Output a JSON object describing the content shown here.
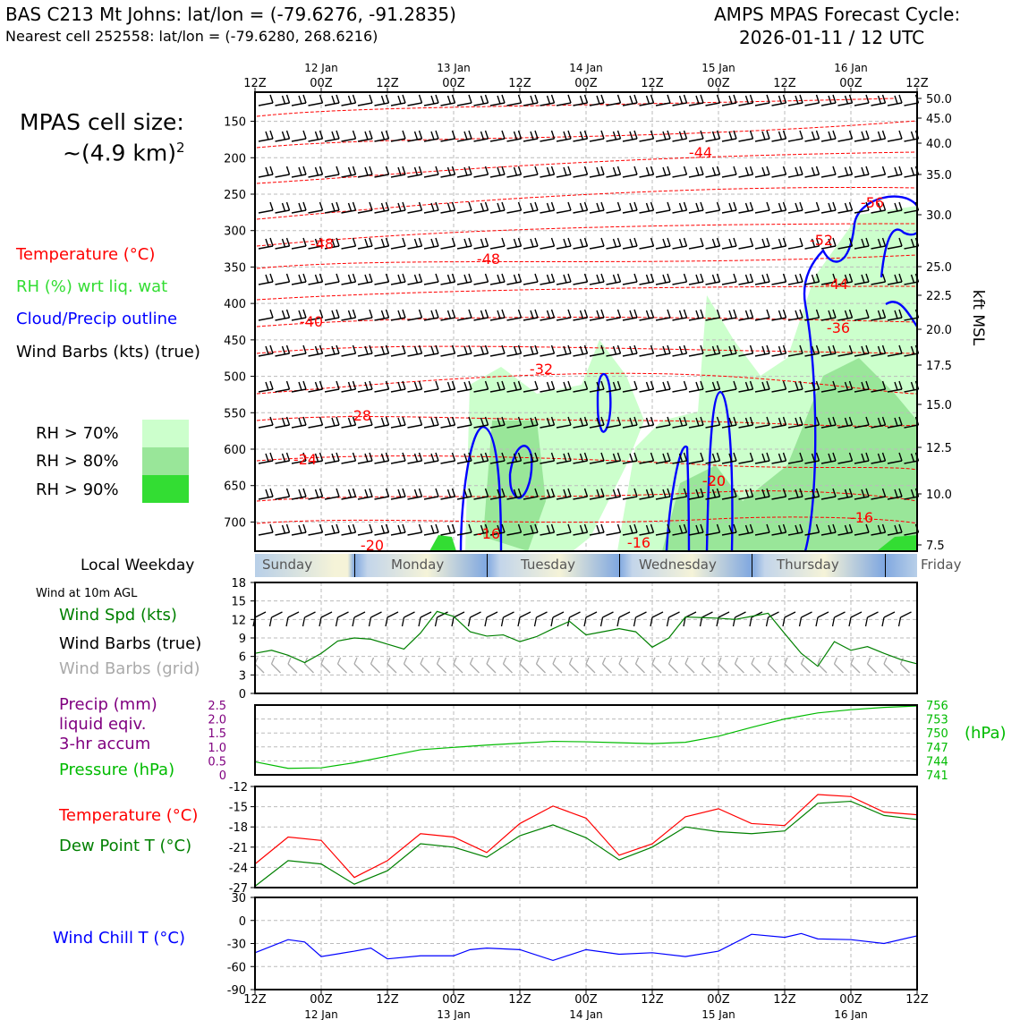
{
  "header": {
    "station_line": "BAS C213 Mt Johns: lat/lon = (-79.6276, -91.2835)",
    "cell_line": "Nearest cell 252558: lat/lon = (-79.6280, 268.6216)",
    "cycle_line1": "AMPS MPAS Forecast Cycle:",
    "cycle_line2": "2026-01-11 / 12 UTC"
  },
  "sidebar": {
    "cell_size_label": "MPAS cell size:",
    "cell_size_value": "~(4.9 km)",
    "cell_size_exp": "2",
    "legend_temperature": "Temperature (°C)",
    "legend_rh": "RH (%) wrt liq. wat",
    "legend_cloud": "Cloud/Precip outline",
    "legend_wind": "Wind Barbs (kts) (true)",
    "rh_levels": [
      "RH > 70%",
      "RH > 80%",
      "RH > 90%"
    ],
    "rh_colors": [
      "#ccffcc",
      "#99e699",
      "#33dd33"
    ]
  },
  "time_axis": {
    "top_ticks": [
      "12Z",
      "00Z",
      "12Z",
      "00Z",
      "12Z",
      "00Z",
      "12Z",
      "00Z",
      "12Z",
      "00Z",
      "12Z"
    ],
    "dates": [
      "12 Jan",
      "13 Jan",
      "14 Jan",
      "15 Jan",
      "16 Jan"
    ]
  },
  "weekday": {
    "title": "Local Weekday",
    "days": [
      "Sunday",
      "Monday",
      "Tuesday",
      "Wednesday",
      "Thursday",
      "Friday"
    ]
  },
  "lower_labels": {
    "wind_title": "Wind at 10m AGL",
    "wind_spd": "Wind Spd (kts)",
    "wind_barbs_true": "Wind Barbs (true)",
    "wind_barbs_grid": "Wind Barbs (grid)",
    "precip_line1": "Precip (mm)",
    "precip_line2": "liquid eqiv.",
    "precip_line3": "3-hr accum",
    "pressure": "Pressure (hPa)",
    "pressure_unit": "(hPa)",
    "temperature": "Temperature (°C)",
    "dewpoint": "Dew Point T (°C)",
    "windchill": "Wind Chill T (°C)"
  },
  "colors": {
    "temperature": "#ff0000",
    "rh": "#33dd33",
    "cloud": "#0000ff",
    "wind_spd": "#008000",
    "wind_grid": "#aaaaaa",
    "precip": "#800080",
    "pressure": "#00bb00",
    "windchill": "#0000ff"
  },
  "chart_data": [
    {
      "type": "line",
      "name": "time-height cross section",
      "x_range": [
        "2026-01-11 12Z",
        "2026-01-16 12Z"
      ],
      "pressure_ticks": [
        150,
        200,
        250,
        300,
        350,
        400,
        450,
        500,
        550,
        600,
        650,
        700
      ],
      "kft_ticks": [
        "50.0",
        "45.0",
        "40.0",
        "35.0",
        "30.0",
        "25.0",
        "22.5",
        "20.0",
        "17.5",
        "15.0",
        "12.5",
        "10.0",
        "7.5"
      ],
      "kft_label": "kft MSL",
      "temperature_contour_labels": [
        "-44",
        "-48",
        "-48",
        "-52",
        "-56",
        "-44",
        "-40",
        "-36",
        "-32",
        "-28",
        "-24",
        "-20",
        "-20",
        "-16",
        "-16",
        "-16",
        "-20"
      ]
    },
    {
      "type": "line",
      "name": "wind speed 10m",
      "xlabel": "",
      "ylabel": "",
      "ylim": [
        0,
        18
      ],
      "yticks": [
        "0",
        "3",
        "6",
        "9",
        "12",
        "15",
        "18"
      ],
      "x_hours": [
        0,
        3,
        6,
        9,
        12,
        15,
        18,
        21,
        24,
        27,
        30,
        33,
        36,
        39,
        42,
        45,
        48,
        51,
        54,
        57,
        60,
        63,
        66,
        69,
        72,
        75,
        78,
        81,
        84,
        87,
        90,
        93,
        96,
        99,
        102,
        105,
        108,
        111,
        114,
        117,
        120
      ],
      "series": [
        {
          "name": "Wind Spd (kts)",
          "values": [
            6.5,
            7.0,
            6.2,
            5.0,
            6.5,
            8.5,
            9.0,
            8.8,
            8.0,
            7.2,
            9.8,
            13.3,
            12.5,
            10.0,
            9.3,
            9.5,
            8.4,
            9.2,
            10.5,
            11.7,
            9.5,
            10.0,
            10.5,
            10.0,
            7.5,
            9.0,
            12.4,
            12.3,
            12.2,
            12.0,
            12.5,
            13.0,
            9.7,
            6.5,
            4.4,
            8.4,
            7.0,
            7.6,
            6.5,
            5.5,
            4.8
          ]
        }
      ]
    },
    {
      "type": "line",
      "name": "pressure and precip",
      "ylim_precip": [
        0,
        2.5
      ],
      "precip_ticks": [
        "0",
        "0.5",
        "1.0",
        "1.5",
        "2.0",
        "2.5"
      ],
      "ylim_pressure": [
        741,
        756
      ],
      "pressure_ticks": [
        "741",
        "744",
        "747",
        "750",
        "753",
        "756"
      ],
      "x_hours": [
        0,
        6,
        12,
        18,
        24,
        30,
        36,
        42,
        48,
        54,
        60,
        66,
        72,
        78,
        84,
        90,
        96,
        102,
        108,
        114,
        120
      ],
      "series": [
        {
          "name": "Pressure (hPa)",
          "values": [
            743.8,
            742.4,
            742.5,
            743.6,
            745.0,
            746.4,
            746.9,
            747.4,
            747.8,
            748.2,
            748.1,
            747.9,
            747.7,
            748.0,
            749.3,
            751.2,
            753.0,
            754.3,
            755.0,
            755.5,
            755.8
          ]
        }
      ]
    },
    {
      "type": "line",
      "name": "temperature and dew point",
      "ylim": [
        -27,
        -12
      ],
      "yticks": [
        "-12",
        "-15",
        "-18",
        "-21",
        "-24",
        "-27"
      ],
      "x_hours": [
        0,
        6,
        12,
        18,
        24,
        30,
        36,
        42,
        48,
        54,
        60,
        66,
        72,
        78,
        84,
        90,
        96,
        102,
        108,
        114,
        120
      ],
      "series": [
        {
          "name": "Temperature (°C)",
          "values": [
            -23.5,
            -19.5,
            -20.0,
            -25.5,
            -23.0,
            -19.0,
            -19.5,
            -21.8,
            -17.5,
            -14.9,
            -16.7,
            -22.2,
            -20.5,
            -16.5,
            -15.3,
            -17.5,
            -17.8,
            -13.2,
            -13.5,
            -15.8,
            -16.2
          ]
        },
        {
          "name": "Dew Point T (°C)",
          "values": [
            -26.8,
            -23.0,
            -23.5,
            -26.5,
            -24.5,
            -20.5,
            -21.0,
            -22.5,
            -19.3,
            -17.7,
            -19.6,
            -22.9,
            -21.0,
            -18.0,
            -18.7,
            -19.0,
            -18.6,
            -14.5,
            -14.2,
            -16.3,
            -16.9
          ]
        }
      ]
    },
    {
      "type": "line",
      "name": "wind chill",
      "ylim": [
        -90,
        30
      ],
      "yticks": [
        "30",
        "0",
        "-30",
        "-60",
        "-90"
      ],
      "x_hours": [
        0,
        6,
        9,
        12,
        18,
        21,
        24,
        30,
        36,
        39,
        42,
        48,
        54,
        60,
        66,
        72,
        78,
        84,
        90,
        96,
        99,
        102,
        108,
        114,
        120
      ],
      "series": [
        {
          "name": "Wind Chill T (°C)",
          "values": [
            -42,
            -25,
            -28,
            -47,
            -40,
            -36,
            -50,
            -46,
            -46,
            -38,
            -36,
            -38,
            -52,
            -38,
            -44,
            -42,
            -47,
            -40,
            -18,
            -22,
            -17,
            -24,
            -25,
            -30,
            -20
          ]
        }
      ]
    }
  ]
}
